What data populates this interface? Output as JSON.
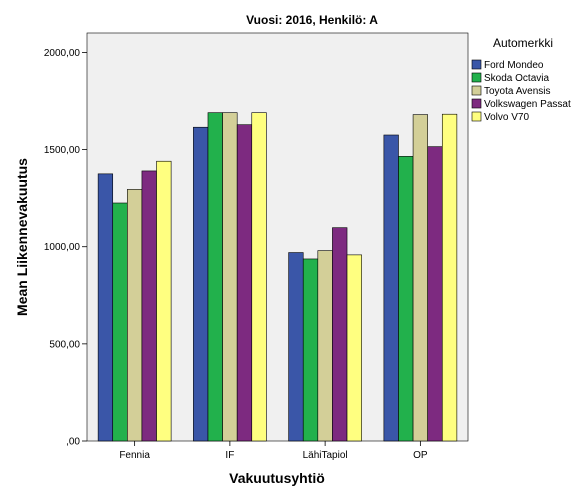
{
  "chart_data": {
    "type": "bar",
    "title": "Vuosi: 2016, Henkilö: A",
    "xlabel": "Vakuutusyhtiö",
    "ylabel": "Mean Liikennevakuutus",
    "categories": [
      "Fennia",
      "IF",
      "LähiTapiol",
      "OP"
    ],
    "ylim": [
      0,
      2100
    ],
    "yticks": [
      0,
      500,
      1000,
      1500,
      2000
    ],
    "ytick_labels": [
      ",00",
      "500,00",
      "1000,00",
      "1500,00",
      "2000,00"
    ],
    "legend_title": "Automerkki",
    "legend_position": "right",
    "grid": false,
    "series": [
      {
        "name": "Ford Mondeo",
        "color": "#3a56a8",
        "values": [
          1375,
          1615,
          970,
          1575
        ]
      },
      {
        "name": "Skoda Octavia",
        "color": "#22b14c",
        "values": [
          1225,
          1690,
          937,
          1465
        ]
      },
      {
        "name": "Toyota Avensis",
        "color": "#d3cf98",
        "values": [
          1295,
          1690,
          980,
          1680
        ]
      },
      {
        "name": "Volkswagen Passat",
        "color": "#7d2a80",
        "values": [
          1390,
          1628,
          1098,
          1515
        ]
      },
      {
        "name": "Volvo V70",
        "color": "#ffff80",
        "values": [
          1440,
          1690,
          958,
          1682
        ]
      }
    ]
  },
  "colors": {
    "plot_background": "#f0f0f0",
    "bar_outline": "#000000"
  }
}
